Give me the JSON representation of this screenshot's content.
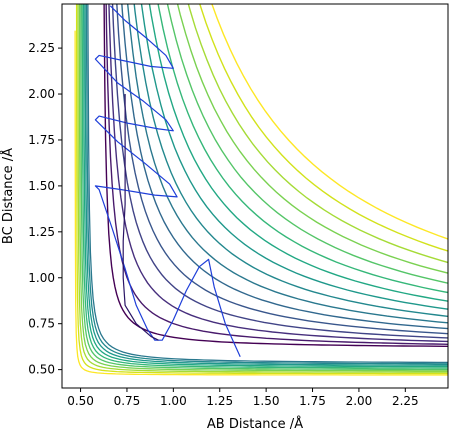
{
  "chart_data": {
    "type": "contour",
    "xlabel": "AB Distance /Å",
    "ylabel": "BC Distance /Å",
    "xlim": [
      0.4,
      2.48
    ],
    "ylim": [
      0.4,
      2.49
    ],
    "x_ticks": [
      {
        "value": 0.5,
        "label": "0.50"
      },
      {
        "value": 0.75,
        "label": "0.75"
      },
      {
        "value": 1.0,
        "label": "1.00"
      },
      {
        "value": 1.25,
        "label": "1.25"
      },
      {
        "value": 1.5,
        "label": "1.50"
      },
      {
        "value": 1.75,
        "label": "1.75"
      },
      {
        "value": 2.0,
        "label": "2.00"
      },
      {
        "value": 2.25,
        "label": "2.25"
      }
    ],
    "y_ticks": [
      {
        "value": 0.5,
        "label": "0.50"
      },
      {
        "value": 0.75,
        "label": "0.75"
      },
      {
        "value": 1.0,
        "label": "1.00"
      },
      {
        "value": 1.25,
        "label": "1.25"
      },
      {
        "value": 1.5,
        "label": "1.50"
      },
      {
        "value": 1.75,
        "label": "1.75"
      },
      {
        "value": 2.0,
        "label": "2.00"
      },
      {
        "value": 2.25,
        "label": "2.25"
      }
    ],
    "grid": false,
    "colormap": "viridis",
    "potential_well": {
      "x_asymptote_min": 0.74,
      "y_asymptote_min": 0.74,
      "channel_floor_x": 0.62,
      "channel_floor_y": 0.62
    },
    "contour_levels": [
      {
        "level": 0,
        "color": "#440154"
      },
      {
        "level": 1,
        "color": "#481a6c"
      },
      {
        "level": 2,
        "color": "#472f7d"
      },
      {
        "level": 3,
        "color": "#414487"
      },
      {
        "level": 4,
        "color": "#39568c"
      },
      {
        "level": 5,
        "color": "#31688e"
      },
      {
        "level": 6,
        "color": "#2a788e"
      },
      {
        "level": 7,
        "color": "#23888e"
      },
      {
        "level": 8,
        "color": "#1f988b"
      },
      {
        "level": 9,
        "color": "#22a884"
      },
      {
        "level": 10,
        "color": "#35b779"
      },
      {
        "level": 11,
        "color": "#54c568"
      },
      {
        "level": 12,
        "color": "#7ad151"
      },
      {
        "level": 13,
        "color": "#a5db36"
      },
      {
        "level": 14,
        "color": "#d2e21b"
      },
      {
        "level": 15,
        "color": "#fde725"
      }
    ],
    "trajectories": [
      {
        "color": "#1f3fd9",
        "points": [
          [
            1.36,
            0.57
          ],
          [
            1.28,
            0.75
          ],
          [
            1.22,
            0.95
          ],
          [
            1.19,
            1.1
          ],
          [
            1.14,
            1.06
          ],
          [
            1.07,
            0.93
          ],
          [
            1.0,
            0.77
          ],
          [
            0.94,
            0.66
          ],
          [
            0.9,
            0.66
          ],
          [
            0.86,
            0.72
          ],
          [
            0.8,
            0.85
          ],
          [
            0.74,
            1.05
          ],
          [
            0.67,
            1.27
          ],
          [
            0.6,
            1.48
          ],
          [
            0.58,
            1.5
          ],
          [
            0.72,
            1.48
          ],
          [
            0.9,
            1.45
          ],
          [
            1.02,
            1.44
          ],
          [
            0.98,
            1.51
          ],
          [
            0.85,
            1.62
          ],
          [
            0.7,
            1.74
          ],
          [
            0.58,
            1.86
          ],
          [
            0.6,
            1.88
          ],
          [
            0.76,
            1.84
          ],
          [
            0.92,
            1.81
          ],
          [
            1.0,
            1.8
          ],
          [
            0.96,
            1.86
          ],
          [
            0.84,
            1.96
          ],
          [
            0.7,
            2.06
          ],
          [
            0.58,
            2.19
          ],
          [
            0.6,
            2.21
          ],
          [
            0.74,
            2.18
          ],
          [
            0.88,
            2.15
          ],
          [
            1.0,
            2.14
          ],
          [
            0.96,
            2.21
          ],
          [
            0.86,
            2.3
          ],
          [
            0.74,
            2.4
          ],
          [
            0.66,
            2.48
          ]
        ]
      },
      {
        "color": "#2a1566",
        "points": [
          [
            0.74,
            2.0
          ],
          [
            0.74,
            1.8
          ],
          [
            0.74,
            1.6
          ],
          [
            0.74,
            1.4
          ],
          [
            0.73,
            1.2
          ],
          [
            0.73,
            1.0
          ],
          [
            0.74,
            0.85
          ],
          [
            0.8,
            0.75
          ],
          [
            0.88,
            0.68
          ],
          [
            0.92,
            0.66
          ]
        ]
      }
    ]
  }
}
